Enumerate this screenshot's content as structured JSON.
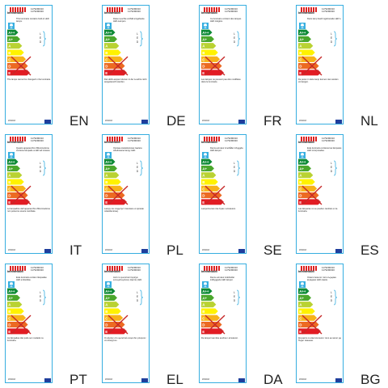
{
  "brand": "brennenstuhl",
  "codes": [
    "1179290310",
    "1179290320"
  ],
  "led_letters": [
    "L",
    "E",
    "D"
  ],
  "date": "2/3/2013",
  "scale_classes": [
    "A++",
    "A+",
    "A",
    "B",
    "C",
    "D",
    "E"
  ],
  "colors": {
    "frame": "#36aee0",
    "cross": "#c62828",
    "eu": "#1f3e9c",
    "scale": [
      "#0e8a36",
      "#4aa72c",
      "#b9d232",
      "#fff200",
      "#f7b21a",
      "#ec6a22",
      "#e21b23"
    ]
  },
  "labels": [
    {
      "lang": "EN",
      "desc": "This luminaire contains built-in LED lamps.",
      "foot": "The lamps cannot be changed in the luminaire."
    },
    {
      "lang": "DE",
      "desc": "Diese Leuchte enthält eingebaute LED-Lampen.",
      "foot": "Die LED-Lampen können in der Leuchte nicht ausgetauscht werden."
    },
    {
      "lang": "FR",
      "desc": "Ce luminaire contient des lampes LED intégrés.",
      "foot": "Les lampes ne peuvent pas être modifiées dans le luminaire."
    },
    {
      "lang": "NL",
      "desc": "Deze lamp heeft ingebouwde LED`s.",
      "foot": "De peren in deze lamp kunnen niet worden vervangen."
    },
    {
      "lang": "IT",
      "desc": "Questo apparecchio d'illuminazione contiene lampade a LED ad incasso.",
      "foot": "Le lampadine dell´apparecchio d'illuminazione non possono essere cambiate."
    },
    {
      "lang": "PL",
      "desc": "Oprawa oświetleniowa zawiera wbudowane lampy LED.",
      "foot": "Lampy nie mogą być zmieniane w oprawie oświetleniowej."
    },
    {
      "lang": "SE",
      "desc": "Denna armatur innehåller inbyggda LED-lampor.",
      "foot": "Lamporna kan inte bytas i armaturen."
    },
    {
      "lang": "ES",
      "desc": "Esta luminaria contiene las lámparas LED incorporadas.",
      "foot": "Las lámparas no se pueden cambiar en la luminaria."
    },
    {
      "lang": "PT",
      "desc": "Esta luminária contém lâmpadas LED embutidas.",
      "foot": "As lâmpadas não pode ser mudado na luminária."
    },
    {
      "lang": "EL",
      "desc": "Αυτό το φωτιστικό περιέχει ενσωματωμένους λάμπες LED.",
      "foot": "Οι λάμπες στο φωτιστικό σώμα δεν μπορούν να αλλαχτούν."
    },
    {
      "lang": "DA",
      "desc": "Denne armatur indeholder indbyggede LED lamper.",
      "foot": "De lamper kan ikke ændres i armaturet."
    },
    {
      "lang": "BG",
      "desc": "Осветителното тяло съдържа вградени LED лампи.",
      "foot": "Крушките в осветителното тяло не могат да бъдат сменени."
    }
  ]
}
